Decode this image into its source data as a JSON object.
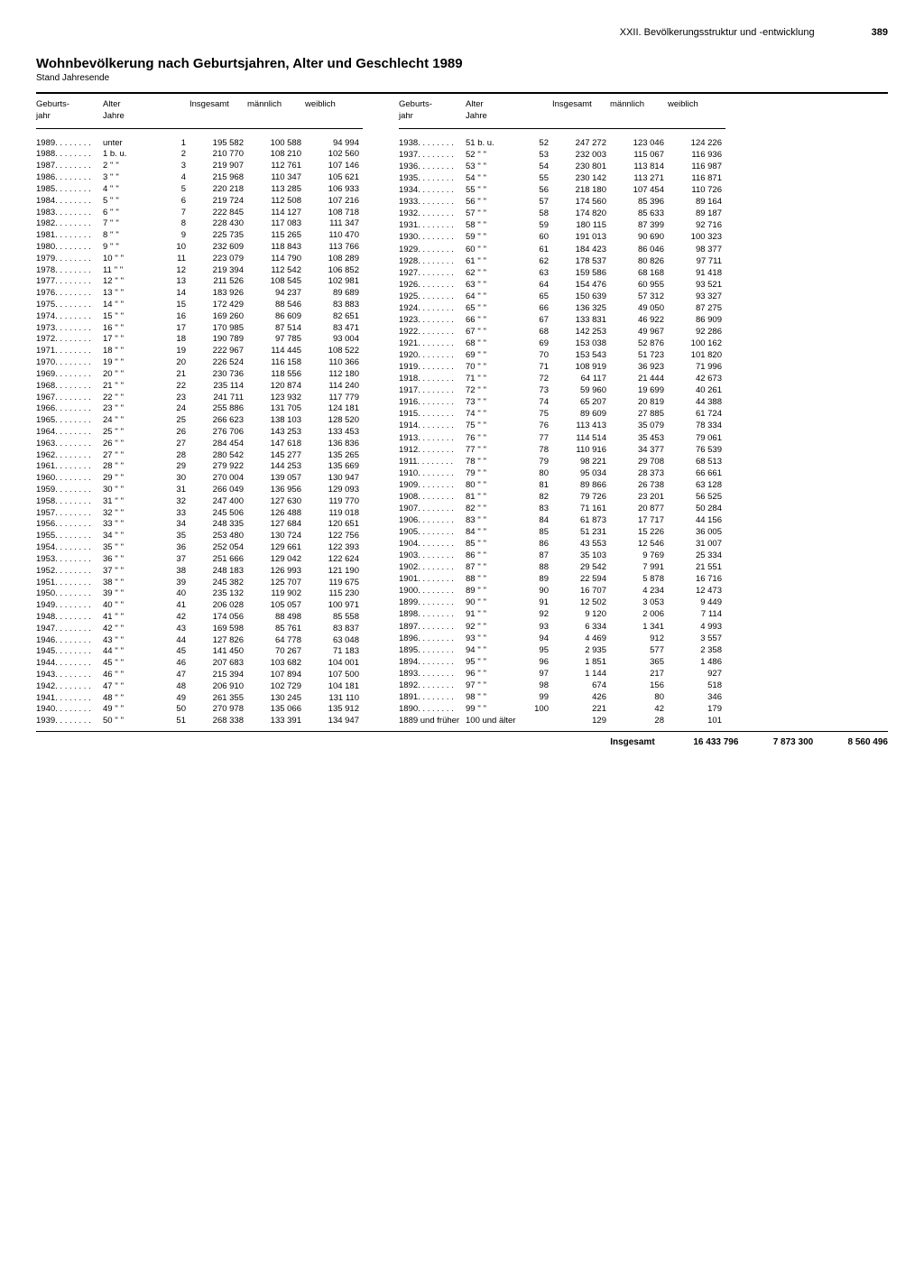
{
  "header": {
    "section": "XXII. Bevölkerungsstruktur und -entwicklung",
    "page": "389"
  },
  "title": "Wohnbevölkerung nach Geburtsjahren, Alter und Geschlecht 1989",
  "subtitle": "Stand Jahresende",
  "columns": {
    "birthyear": "Geburts-\njahr",
    "age": "Alter\nJahre",
    "total": "Insgesamt",
    "male": "männlich",
    "female": "weiblich"
  },
  "left": [
    {
      "y": "1989",
      "a": "unter",
      "r": "1",
      "t": "195 582",
      "m": "100 588",
      "f": "94 994"
    },
    {
      "y": "1988",
      "a": "1 b. u.",
      "r": "2",
      "t": "210 770",
      "m": "108 210",
      "f": "102 560"
    },
    {
      "y": "1987",
      "a": "2  ''  ''",
      "r": "3",
      "t": "219 907",
      "m": "112 761",
      "f": "107 146"
    },
    {
      "y": "1986",
      "a": "3  ''  ''",
      "r": "4",
      "t": "215 968",
      "m": "110 347",
      "f": "105 621"
    },
    {
      "y": "1985",
      "a": "4  ''  ''",
      "r": "5",
      "t": "220 218",
      "m": "113 285",
      "f": "106 933"
    },
    {
      "y": "1984",
      "a": "5  ''  ''",
      "r": "6",
      "t": "219 724",
      "m": "112 508",
      "f": "107 216"
    },
    {
      "y": "1983",
      "a": "6  ''  ''",
      "r": "7",
      "t": "222 845",
      "m": "114 127",
      "f": "108 718"
    },
    {
      "y": "1982",
      "a": "7  ''  ''",
      "r": "8",
      "t": "228 430",
      "m": "117 083",
      "f": "111 347"
    },
    {
      "y": "1981",
      "a": "8  ''  ''",
      "r": "9",
      "t": "225 735",
      "m": "115 265",
      "f": "110 470"
    },
    {
      "y": "1980",
      "a": "9  ''  ''",
      "r": "10",
      "t": "232 609",
      "m": "118 843",
      "f": "113 766"
    },
    {
      "y": "1979",
      "a": "10  ''  ''",
      "r": "11",
      "t": "223 079",
      "m": "114 790",
      "f": "108 289"
    },
    {
      "y": "1978",
      "a": "11  ''  ''",
      "r": "12",
      "t": "219 394",
      "m": "112 542",
      "f": "106 852"
    },
    {
      "y": "1977",
      "a": "12  ''  ''",
      "r": "13",
      "t": "211 526",
      "m": "108 545",
      "f": "102 981"
    },
    {
      "y": "1976",
      "a": "13  ''  ''",
      "r": "14",
      "t": "183 926",
      "m": "94 237",
      "f": "89 689"
    },
    {
      "y": "1975",
      "a": "14  ''  ''",
      "r": "15",
      "t": "172 429",
      "m": "88 546",
      "f": "83 883"
    },
    {
      "y": "1974",
      "a": "15  ''  ''",
      "r": "16",
      "t": "169 260",
      "m": "86 609",
      "f": "82 651"
    },
    {
      "y": "1973",
      "a": "16  ''  ''",
      "r": "17",
      "t": "170 985",
      "m": "87 514",
      "f": "83 471"
    },
    {
      "y": "1972",
      "a": "17  ''  ''",
      "r": "18",
      "t": "190 789",
      "m": "97 785",
      "f": "93 004"
    },
    {
      "y": "1971",
      "a": "18  ''  ''",
      "r": "19",
      "t": "222 967",
      "m": "114 445",
      "f": "108 522"
    },
    {
      "y": "1970",
      "a": "19  ''  ''",
      "r": "20",
      "t": "226 524",
      "m": "116 158",
      "f": "110 366"
    },
    {
      "y": "1969",
      "a": "20  ''  ''",
      "r": "21",
      "t": "230 736",
      "m": "118 556",
      "f": "112 180"
    },
    {
      "y": "1968",
      "a": "21  ''  ''",
      "r": "22",
      "t": "235 114",
      "m": "120 874",
      "f": "114 240"
    },
    {
      "y": "1967",
      "a": "22  ''  ''",
      "r": "23",
      "t": "241 711",
      "m": "123 932",
      "f": "117 779"
    },
    {
      "y": "1966",
      "a": "23  ''  ''",
      "r": "24",
      "t": "255 886",
      "m": "131 705",
      "f": "124 181"
    },
    {
      "y": "1965",
      "a": "24  ''  ''",
      "r": "25",
      "t": "266 623",
      "m": "138 103",
      "f": "128 520"
    },
    {
      "y": "1964",
      "a": "25  ''  ''",
      "r": "26",
      "t": "276 706",
      "m": "143 253",
      "f": "133 453"
    },
    {
      "y": "1963",
      "a": "26  ''  ''",
      "r": "27",
      "t": "284 454",
      "m": "147 618",
      "f": "136 836"
    },
    {
      "y": "1962",
      "a": "27  ''  ''",
      "r": "28",
      "t": "280 542",
      "m": "145 277",
      "f": "135 265"
    },
    {
      "y": "1961",
      "a": "28  ''  ''",
      "r": "29",
      "t": "279 922",
      "m": "144 253",
      "f": "135 669"
    },
    {
      "y": "1960",
      "a": "29  ''  ''",
      "r": "30",
      "t": "270 004",
      "m": "139 057",
      "f": "130 947"
    },
    {
      "y": "1959",
      "a": "30  ''  ''",
      "r": "31",
      "t": "266 049",
      "m": "136 956",
      "f": "129 093"
    },
    {
      "y": "1958",
      "a": "31  ''  ''",
      "r": "32",
      "t": "247 400",
      "m": "127 630",
      "f": "119 770"
    },
    {
      "y": "1957",
      "a": "32  ''  ''",
      "r": "33",
      "t": "245 506",
      "m": "126 488",
      "f": "119 018"
    },
    {
      "y": "1956",
      "a": "33  ''  ''",
      "r": "34",
      "t": "248 335",
      "m": "127 684",
      "f": "120 651"
    },
    {
      "y": "1955",
      "a": "34  ''  ''",
      "r": "35",
      "t": "253 480",
      "m": "130 724",
      "f": "122 756"
    },
    {
      "y": "1954",
      "a": "35  ''  ''",
      "r": "36",
      "t": "252 054",
      "m": "129 661",
      "f": "122 393"
    },
    {
      "y": "1953",
      "a": "36  ''  ''",
      "r": "37",
      "t": "251 666",
      "m": "129 042",
      "f": "122 624"
    },
    {
      "y": "1952",
      "a": "37  ''  ''",
      "r": "38",
      "t": "248 183",
      "m": "126 993",
      "f": "121 190"
    },
    {
      "y": "1951",
      "a": "38  ''  ''",
      "r": "39",
      "t": "245 382",
      "m": "125 707",
      "f": "119 675"
    },
    {
      "y": "1950",
      "a": "39  ''  ''",
      "r": "40",
      "t": "235 132",
      "m": "119 902",
      "f": "115 230"
    },
    {
      "y": "1949",
      "a": "40  ''  ''",
      "r": "41",
      "t": "206 028",
      "m": "105 057",
      "f": "100 971"
    },
    {
      "y": "1948",
      "a": "41  ''  ''",
      "r": "42",
      "t": "174 056",
      "m": "88 498",
      "f": "85 558"
    },
    {
      "y": "1947",
      "a": "42  ''  ''",
      "r": "43",
      "t": "169 598",
      "m": "85 761",
      "f": "83 837"
    },
    {
      "y": "1946",
      "a": "43  ''  ''",
      "r": "44",
      "t": "127 826",
      "m": "64 778",
      "f": "63 048"
    },
    {
      "y": "1945",
      "a": "44  ''  ''",
      "r": "45",
      "t": "141 450",
      "m": "70 267",
      "f": "71 183"
    },
    {
      "y": "1944",
      "a": "45  ''  ''",
      "r": "46",
      "t": "207 683",
      "m": "103 682",
      "f": "104 001"
    },
    {
      "y": "1943",
      "a": "46  ''  ''",
      "r": "47",
      "t": "215 394",
      "m": "107 894",
      "f": "107 500"
    },
    {
      "y": "1942",
      "a": "47  ''  ''",
      "r": "48",
      "t": "206 910",
      "m": "102 729",
      "f": "104 181"
    },
    {
      "y": "1941",
      "a": "48  ''  ''",
      "r": "49",
      "t": "261 355",
      "m": "130 245",
      "f": "131 110"
    },
    {
      "y": "1940",
      "a": "49  ''  ''",
      "r": "50",
      "t": "270 978",
      "m": "135 066",
      "f": "135 912"
    },
    {
      "y": "1939",
      "a": "50  ''  ''",
      "r": "51",
      "t": "268 338",
      "m": "133 391",
      "f": "134 947"
    }
  ],
  "right": [
    {
      "y": "1938",
      "a": "51 b. u.",
      "r": "52",
      "t": "247 272",
      "m": "123 046",
      "f": "124 226"
    },
    {
      "y": "1937",
      "a": "52  ''  ''",
      "r": "53",
      "t": "232 003",
      "m": "115 067",
      "f": "116 936"
    },
    {
      "y": "1936",
      "a": "53  ''  ''",
      "r": "54",
      "t": "230 801",
      "m": "113 814",
      "f": "116 987"
    },
    {
      "y": "1935",
      "a": "54  ''  ''",
      "r": "55",
      "t": "230 142",
      "m": "113 271",
      "f": "116 871"
    },
    {
      "y": "1934",
      "a": "55  ''  ''",
      "r": "56",
      "t": "218 180",
      "m": "107 454",
      "f": "110 726"
    },
    {
      "y": "1933",
      "a": "56  ''  ''",
      "r": "57",
      "t": "174 560",
      "m": "85 396",
      "f": "89 164"
    },
    {
      "y": "1932",
      "a": "57  ''  ''",
      "r": "58",
      "t": "174 820",
      "m": "85 633",
      "f": "89 187"
    },
    {
      "y": "1931",
      "a": "58  ''  ''",
      "r": "59",
      "t": "180 115",
      "m": "87 399",
      "f": "92 716"
    },
    {
      "y": "1930",
      "a": "59  ''  ''",
      "r": "60",
      "t": "191 013",
      "m": "90 690",
      "f": "100 323"
    },
    {
      "y": "1929",
      "a": "60  ''  ''",
      "r": "61",
      "t": "184 423",
      "m": "86 046",
      "f": "98 377"
    },
    {
      "y": "1928",
      "a": "61  ''  ''",
      "r": "62",
      "t": "178 537",
      "m": "80 826",
      "f": "97 711"
    },
    {
      "y": "1927",
      "a": "62  ''  ''",
      "r": "63",
      "t": "159 586",
      "m": "68 168",
      "f": "91 418"
    },
    {
      "y": "1926",
      "a": "63  ''  ''",
      "r": "64",
      "t": "154 476",
      "m": "60 955",
      "f": "93 521"
    },
    {
      "y": "1925",
      "a": "64  ''  ''",
      "r": "65",
      "t": "150 639",
      "m": "57 312",
      "f": "93 327"
    },
    {
      "y": "1924",
      "a": "65  ''  ''",
      "r": "66",
      "t": "136 325",
      "m": "49 050",
      "f": "87 275"
    },
    {
      "y": "1923",
      "a": "66  ''  ''",
      "r": "67",
      "t": "133 831",
      "m": "46 922",
      "f": "86 909"
    },
    {
      "y": "1922",
      "a": "67  ''  ''",
      "r": "68",
      "t": "142 253",
      "m": "49 967",
      "f": "92 286"
    },
    {
      "y": "1921",
      "a": "68  ''  ''",
      "r": "69",
      "t": "153 038",
      "m": "52 876",
      "f": "100 162"
    },
    {
      "y": "1920",
      "a": "69  ''  ''",
      "r": "70",
      "t": "153 543",
      "m": "51 723",
      "f": "101 820"
    },
    {
      "y": "1919",
      "a": "70  ''  ''",
      "r": "71",
      "t": "108 919",
      "m": "36 923",
      "f": "71 996"
    },
    {
      "y": "1918",
      "a": "71  ''  ''",
      "r": "72",
      "t": "64 117",
      "m": "21 444",
      "f": "42 673"
    },
    {
      "y": "1917",
      "a": "72  ''  ''",
      "r": "73",
      "t": "59 960",
      "m": "19 699",
      "f": "40 261"
    },
    {
      "y": "1916",
      "a": "73  ''  ''",
      "r": "74",
      "t": "65 207",
      "m": "20 819",
      "f": "44 388"
    },
    {
      "y": "1915",
      "a": "74  ''  ''",
      "r": "75",
      "t": "89 609",
      "m": "27 885",
      "f": "61 724"
    },
    {
      "y": "1914",
      "a": "75  ''  ''",
      "r": "76",
      "t": "113 413",
      "m": "35 079",
      "f": "78 334"
    },
    {
      "y": "1913",
      "a": "76  ''  ''",
      "r": "77",
      "t": "114 514",
      "m": "35 453",
      "f": "79 061"
    },
    {
      "y": "1912",
      "a": "77  ''  ''",
      "r": "78",
      "t": "110 916",
      "m": "34 377",
      "f": "76 539"
    },
    {
      "y": "1911",
      "a": "78  ''  ''",
      "r": "79",
      "t": "98 221",
      "m": "29 708",
      "f": "68 513"
    },
    {
      "y": "1910",
      "a": "79  ''  ''",
      "r": "80",
      "t": "95 034",
      "m": "28 373",
      "f": "66 661"
    },
    {
      "y": "1909",
      "a": "80  ''  ''",
      "r": "81",
      "t": "89 866",
      "m": "26 738",
      "f": "63 128"
    },
    {
      "y": "1908",
      "a": "81  ''  ''",
      "r": "82",
      "t": "79 726",
      "m": "23 201",
      "f": "56 525"
    },
    {
      "y": "1907",
      "a": "82  ''  ''",
      "r": "83",
      "t": "71 161",
      "m": "20 877",
      "f": "50 284"
    },
    {
      "y": "1906",
      "a": "83  ''  ''",
      "r": "84",
      "t": "61 873",
      "m": "17 717",
      "f": "44 156"
    },
    {
      "y": "1905",
      "a": "84  ''  ''",
      "r": "85",
      "t": "51 231",
      "m": "15 226",
      "f": "36 005"
    },
    {
      "y": "1904",
      "a": "85  ''  ''",
      "r": "86",
      "t": "43 553",
      "m": "12 546",
      "f": "31 007"
    },
    {
      "y": "1903",
      "a": "86  ''  ''",
      "r": "87",
      "t": "35 103",
      "m": "9 769",
      "f": "25 334"
    },
    {
      "y": "1902",
      "a": "87  ''  ''",
      "r": "88",
      "t": "29 542",
      "m": "7 991",
      "f": "21 551"
    },
    {
      "y": "1901",
      "a": "88  ''  ''",
      "r": "89",
      "t": "22 594",
      "m": "5 878",
      "f": "16 716"
    },
    {
      "y": "1900",
      "a": "89  ''  ''",
      "r": "90",
      "t": "16 707",
      "m": "4 234",
      "f": "12 473"
    },
    {
      "y": "1899",
      "a": "90  ''  ''",
      "r": "91",
      "t": "12 502",
      "m": "3 053",
      "f": "9 449"
    },
    {
      "y": "1898",
      "a": "91  ''  ''",
      "r": "92",
      "t": "9 120",
      "m": "2 006",
      "f": "7 114"
    },
    {
      "y": "1897",
      "a": "92  ''  ''",
      "r": "93",
      "t": "6 334",
      "m": "1 341",
      "f": "4 993"
    },
    {
      "y": "1896",
      "a": "93  ''  ''",
      "r": "94",
      "t": "4 469",
      "m": "912",
      "f": "3 557"
    },
    {
      "y": "1895",
      "a": "94  ''  ''",
      "r": "95",
      "t": "2 935",
      "m": "577",
      "f": "2 358"
    },
    {
      "y": "1894",
      "a": "95  ''  ''",
      "r": "96",
      "t": "1 851",
      "m": "365",
      "f": "1 486"
    },
    {
      "y": "1893",
      "a": "96  ''  ''",
      "r": "97",
      "t": "1 144",
      "m": "217",
      "f": "927"
    },
    {
      "y": "1892",
      "a": "97  ''  ''",
      "r": "98",
      "t": "674",
      "m": "156",
      "f": "518"
    },
    {
      "y": "1891",
      "a": "98  ''  ''",
      "r": "99",
      "t": "426",
      "m": "80",
      "f": "346"
    },
    {
      "y": "1890",
      "a": "99  ''  ''",
      "r": "100",
      "t": "221",
      "m": "42",
      "f": "179"
    },
    {
      "y": "1889 und\nfrüher",
      "a": "100 und älter",
      "r": "",
      "t": "129",
      "m": "28",
      "f": "101"
    }
  ],
  "totals": {
    "label": "Insgesamt",
    "total": "16 433 796",
    "male": "7 873 300",
    "female": "8 560 496"
  }
}
